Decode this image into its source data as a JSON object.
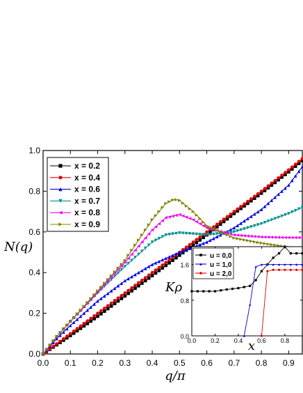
{
  "chart_data": [
    {
      "type": "line",
      "xlabel": "q/π",
      "ylabel": "N(q)",
      "xlim": [
        0.0,
        0.95
      ],
      "ylim": [
        0.0,
        1.0
      ],
      "x_ticks": [
        "0.0",
        "0.1",
        "0.2",
        "0.3",
        "0.4",
        "0.5",
        "0.6",
        "0.7",
        "0.8",
        "0.9"
      ],
      "y_ticks": [
        "0.0",
        "0.2",
        "0.4",
        "0.6",
        "0.8",
        "1.0"
      ],
      "grid": false,
      "legend_position": "top-left",
      "series": [
        {
          "name": "x = 0.2",
          "color": "#000000",
          "marker": "square",
          "x": [
            0.0,
            0.1,
            0.2,
            0.3,
            0.4,
            0.5,
            0.6,
            0.7,
            0.8,
            0.9,
            0.95
          ],
          "y": [
            0.0,
            0.09,
            0.185,
            0.285,
            0.385,
            0.485,
            0.585,
            0.69,
            0.79,
            0.895,
            0.95
          ]
        },
        {
          "name": "x = 0.4",
          "color": "#e00000",
          "marker": "circle",
          "x": [
            0.0,
            0.1,
            0.2,
            0.3,
            0.4,
            0.5,
            0.6,
            0.7,
            0.8,
            0.9,
            0.95
          ],
          "y": [
            0.0,
            0.1,
            0.2,
            0.3,
            0.4,
            0.5,
            0.6,
            0.7,
            0.8,
            0.905,
            0.96
          ]
        },
        {
          "name": "x = 0.6",
          "color": "#0000dd",
          "marker": "triangle-up",
          "x": [
            0.0,
            0.05,
            0.1,
            0.2,
            0.3,
            0.4,
            0.5,
            0.6,
            0.7,
            0.8,
            0.9,
            0.95
          ],
          "y": [
            0.0,
            0.075,
            0.14,
            0.26,
            0.36,
            0.44,
            0.5,
            0.55,
            0.62,
            0.71,
            0.83,
            0.92
          ]
        },
        {
          "name": "x = 0.7",
          "color": "#009090",
          "marker": "triangle-down",
          "x": [
            0.0,
            0.05,
            0.1,
            0.2,
            0.3,
            0.4,
            0.45,
            0.5,
            0.55,
            0.6,
            0.7,
            0.8,
            0.9,
            0.95
          ],
          "y": [
            0.0,
            0.085,
            0.16,
            0.3,
            0.43,
            0.55,
            0.585,
            0.595,
            0.59,
            0.585,
            0.6,
            0.64,
            0.69,
            0.72
          ]
        },
        {
          "name": "x = 0.8",
          "color": "#ee00ee",
          "marker": "triangle-left",
          "x": [
            0.0,
            0.05,
            0.1,
            0.2,
            0.3,
            0.4,
            0.45,
            0.5,
            0.55,
            0.6,
            0.7,
            0.8,
            0.9,
            0.95
          ],
          "y": [
            0.0,
            0.085,
            0.16,
            0.305,
            0.45,
            0.61,
            0.67,
            0.685,
            0.66,
            0.62,
            0.585,
            0.575,
            0.572,
            0.572
          ]
        },
        {
          "name": "x = 0.9",
          "color": "#808000",
          "marker": "triangle-right",
          "x": [
            0.0,
            0.05,
            0.1,
            0.2,
            0.3,
            0.4,
            0.45,
            0.48,
            0.5,
            0.55,
            0.6,
            0.7,
            0.8,
            0.9,
            0.95
          ],
          "y": [
            0.0,
            0.085,
            0.16,
            0.31,
            0.46,
            0.66,
            0.74,
            0.76,
            0.755,
            0.7,
            0.63,
            0.57,
            0.545,
            0.525,
            0.52
          ]
        }
      ]
    },
    {
      "type": "line",
      "xlabel": "x",
      "ylabel": "Kρ",
      "xlim": [
        0.0,
        0.95
      ],
      "ylim": [
        0.0,
        2.0
      ],
      "x_ticks": [
        "0.0",
        "0.2",
        "0.4",
        "0.6",
        "0.8"
      ],
      "y_ticks": [
        "0.0",
        "0.8",
        "1.6"
      ],
      "legend_position": "top-left",
      "series": [
        {
          "name": "u = 0,0",
          "color": "#000000",
          "marker": "square",
          "x": [
            0.0,
            0.1,
            0.2,
            0.3,
            0.4,
            0.5,
            0.55,
            0.6,
            0.65,
            0.7,
            0.75,
            0.8,
            0.85,
            0.9,
            0.95
          ],
          "y": [
            1.0,
            1.0,
            1.0,
            1.04,
            1.07,
            1.12,
            1.25,
            1.45,
            1.6,
            1.75,
            1.85,
            2.0,
            1.85,
            1.85,
            1.85
          ]
        },
        {
          "name": "u = 1,0",
          "color": "#0000dd",
          "marker": "triangle-up",
          "x": [
            0.45,
            0.5,
            0.55,
            0.6,
            0.65,
            0.7,
            0.75,
            0.8,
            0.85,
            0.9,
            0.95
          ],
          "y": [
            0.0,
            0.7,
            1.55,
            1.6,
            1.6,
            1.6,
            1.6,
            1.6,
            1.6,
            1.6,
            1.6
          ]
        },
        {
          "name": "u = 2,0",
          "color": "#e00000",
          "marker": "circle",
          "x": [
            0.6,
            0.65,
            0.7,
            0.75,
            0.8,
            0.85,
            0.9,
            0.95
          ],
          "y": [
            0.0,
            1.45,
            1.48,
            1.48,
            1.48,
            1.48,
            1.48,
            1.48
          ]
        }
      ]
    }
  ]
}
